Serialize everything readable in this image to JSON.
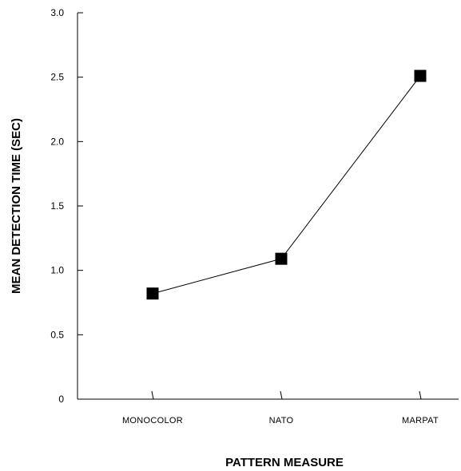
{
  "chart_data": {
    "type": "line",
    "categories": [
      "MONOCOLOR",
      "NATO",
      "MARPAT"
    ],
    "values": [
      0.82,
      1.09,
      2.51
    ],
    "xlabel": "PATTERN MEASURE",
    "ylabel": "MEAN DETECTION TIME (SEC)",
    "ylim": [
      0,
      3.0
    ],
    "yticks": [
      "0",
      "0.5",
      "1.0",
      "1.5",
      "2.0",
      "2.5",
      "3.0"
    ],
    "marker": "square",
    "line_color": "#000000",
    "marker_color": "#000000",
    "grid": false,
    "legend": "none"
  }
}
